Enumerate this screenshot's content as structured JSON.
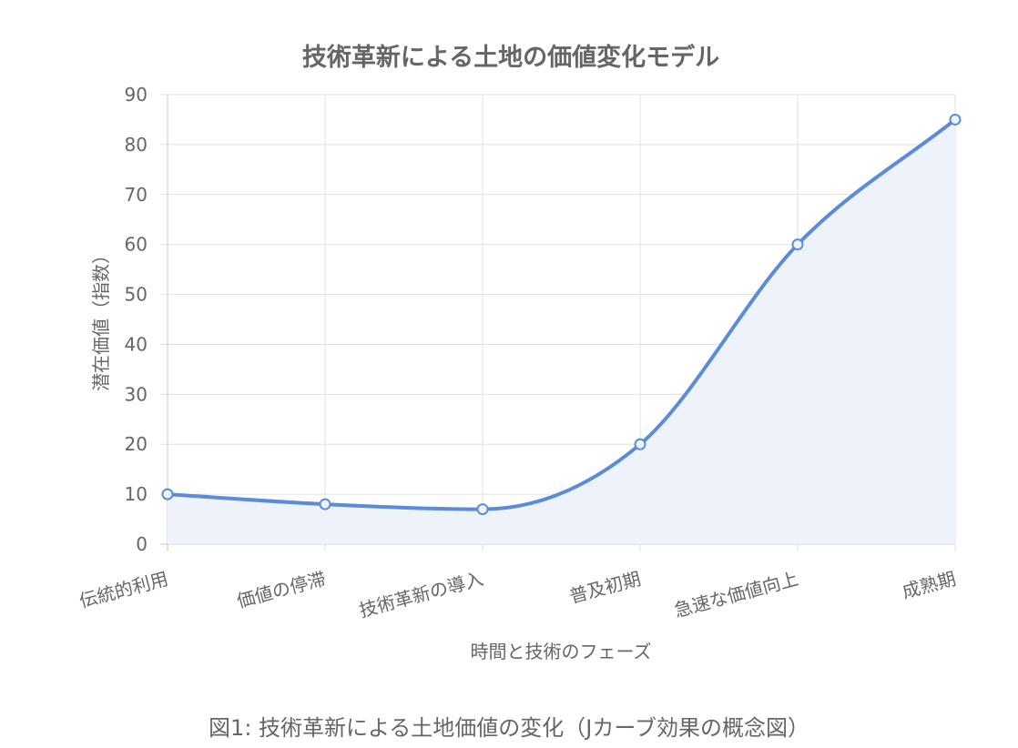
{
  "chart_data": {
    "type": "line",
    "title": "技術革新による土地の価値変化モデル",
    "xlabel": "時間と技術のフェーズ",
    "ylabel": "潜在価値（指数）",
    "categories": [
      "伝統的利用",
      "価値の停滞",
      "技術革新の導入",
      "普及初期",
      "急速な価値向上",
      "成熟期"
    ],
    "series": [
      {
        "values": [
          10,
          8,
          7,
          20,
          60,
          85
        ]
      }
    ],
    "ylim": [
      0,
      90
    ],
    "yticks": [
      0,
      10,
      20,
      30,
      40,
      50,
      60,
      70,
      80,
      90
    ],
    "fill": true,
    "smooth": true,
    "grid": true,
    "legend": "none",
    "colors": {
      "line": "#5b8bd9",
      "fill": "#edf2fb",
      "grid": "#e0e0e0",
      "axis": "#c8c8c8",
      "text": "#666666"
    }
  },
  "caption": "図1: 技術革新による土地価値の変化（Jカーブ効果の概念図）"
}
